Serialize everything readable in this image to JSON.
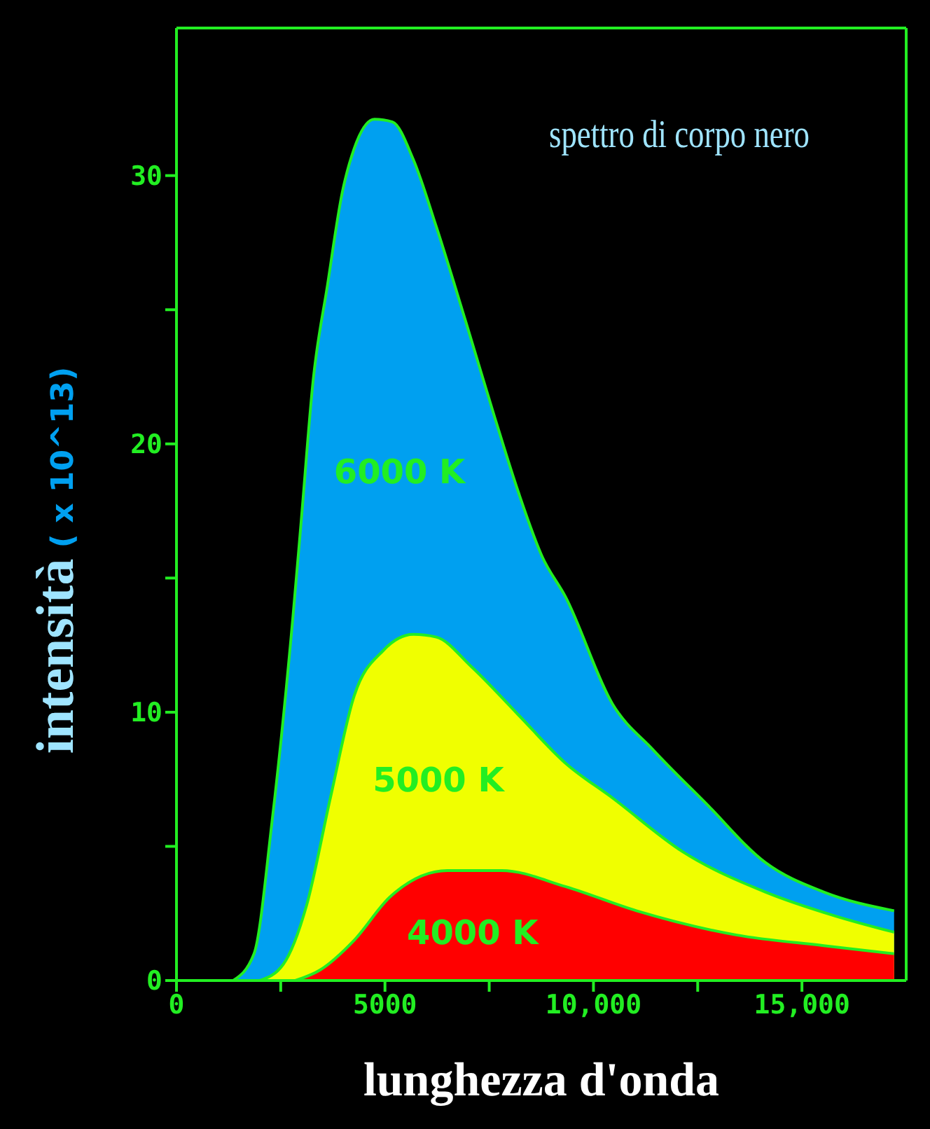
{
  "chart_data": {
    "type": "area",
    "title": "spettro di corpo nero",
    "xlabel": "lunghezza d'onda",
    "ylabel": "intensità ( x 10^13)",
    "xlim": [
      0,
      17500
    ],
    "xticks": [
      0,
      {
        "value": 2500,
        "label": null
      },
      5000,
      {
        "value": 7500,
        "label": null
      },
      {
        "value": 10000,
        "label": "10,000"
      },
      {
        "value": 12500,
        "label": null
      },
      {
        "value": 15000,
        "label": "15,000"
      }
    ],
    "ylim": [
      0,
      35.5
    ],
    "yticks": [
      0,
      {
        "value": 5,
        "label": null
      },
      10,
      {
        "value": 15,
        "label": null
      },
      20,
      {
        "value": 25,
        "label": null
      },
      30
    ],
    "series": [
      {
        "name": "6000 K",
        "color": "#00a0f0",
        "x": [
          1360,
          1860,
          2290,
          2790,
          2990,
          3280,
          3620,
          3980,
          4260,
          4750,
          5180,
          5680,
          6230,
          6930,
          7630,
          8200,
          8770,
          9330,
          10460,
          11430,
          12700,
          14120,
          15520,
          17210
        ],
        "values": [
          0,
          1.0,
          5.9,
          13.5,
          17.1,
          22.4,
          25.9,
          29.4,
          31.0,
          32.1,
          32.0,
          30.6,
          28.1,
          24.6,
          21.0,
          18.2,
          15.8,
          14.3,
          10.3,
          8.6,
          6.6,
          4.4,
          3.3,
          2.6
        ]
      },
      {
        "name": "5000 K",
        "color": "#f0ff00",
        "x": [
          2000,
          2560,
          3120,
          3690,
          4260,
          4960,
          5680,
          6230,
          7070,
          8200,
          9330,
          10460,
          12140,
          14120,
          15810,
          17210
        ],
        "values": [
          0,
          0.6,
          2.8,
          6.8,
          10.6,
          12.3,
          12.9,
          12.8,
          11.7,
          9.9,
          8.1,
          6.8,
          4.8,
          3.3,
          2.4,
          1.8
        ]
      },
      {
        "name": "4000 K",
        "color": "#ff0000",
        "x": [
          2850,
          3450,
          4260,
          5110,
          6500,
          7800,
          9330,
          11030,
          13420,
          15520,
          17210
        ],
        "values": [
          0,
          0.4,
          1.5,
          3.1,
          4.1,
          4.1,
          3.5,
          2.6,
          1.7,
          1.3,
          1.0
        ]
      }
    ]
  }
}
